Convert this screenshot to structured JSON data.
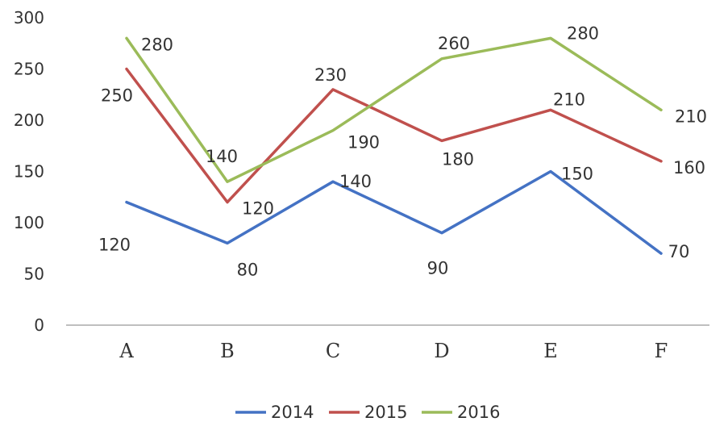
{
  "chart_data": {
    "type": "line",
    "categories": [
      "A",
      "B",
      "C",
      "D",
      "E",
      "F"
    ],
    "ylim": [
      0,
      300
    ],
    "yticks": [
      0,
      50,
      100,
      150,
      200,
      250,
      300
    ],
    "grid": false,
    "legend_position": "bottom",
    "series": [
      {
        "name": "2014",
        "color": "#4472C4",
        "values": [
          120,
          80,
          140,
          90,
          150,
          70
        ]
      },
      {
        "name": "2015",
        "color": "#C0504D",
        "values": [
          250,
          120,
          230,
          180,
          210,
          160
        ]
      },
      {
        "name": "2016",
        "color": "#9BBB59",
        "values": [
          280,
          140,
          190,
          260,
          280,
          210
        ]
      }
    ]
  }
}
